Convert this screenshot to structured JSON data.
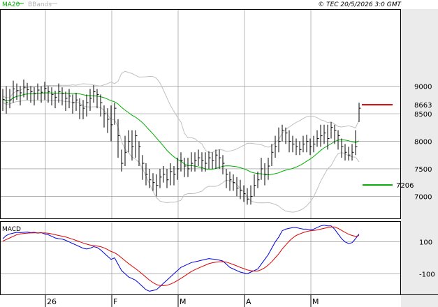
{
  "header": {
    "legend_ma": "MA20",
    "legend_bb": "BBands",
    "copyright": "© TEC 20/5/2026 3:0 GMT"
  },
  "colors": {
    "background": "#ffffff",
    "grid": "#888888",
    "panel_border": "#000000",
    "axis_band": "#ebebeb",
    "ohlc": "#000000",
    "ma20": "#00b000",
    "bbands": "#c0c0c0",
    "macd": "#0000dd",
    "signal": "#dd0000",
    "resistance": "#cc0000",
    "support": "#00a000",
    "legend_text_ma": "#00aa00",
    "legend_text_bb": "#b0b0b0"
  },
  "chart_data": [
    {
      "type": "ohlc",
      "panel": "price",
      "y_ticks": [
        "9000",
        "8500",
        "8000",
        "7500",
        "7000"
      ],
      "y_tick_values": [
        9000,
        8500,
        8000,
        7500,
        7000
      ],
      "ylim": [
        6600,
        10400
      ],
      "x_tick_labels": [
        "26",
        "F",
        "M",
        "A",
        "M"
      ],
      "x_tick_index": [
        12,
        31,
        50,
        69,
        88
      ],
      "close": [
        8760,
        8700,
        8750,
        8950,
        8920,
        8880,
        8980,
        8940,
        8900,
        8860,
        8930,
        8890,
        8960,
        8900,
        8850,
        8800,
        8900,
        8870,
        8780,
        8820,
        8700,
        8750,
        8650,
        8600,
        8700,
        8780,
        8900,
        8850,
        8700,
        8500,
        8400,
        8300,
        8600,
        8100,
        7600,
        7800,
        8000,
        7900,
        8100,
        7900,
        7600,
        7400,
        7300,
        7250,
        7200,
        7350,
        7400,
        7300,
        7450,
        7400,
        7500,
        7650,
        7550,
        7500,
        7600,
        7650,
        7700,
        7650,
        7600,
        7700,
        7650,
        7750,
        7700,
        7600,
        7400,
        7300,
        7250,
        7150,
        7100,
        7050,
        6950,
        7000,
        7200,
        7300,
        7500,
        7400,
        7550,
        7800,
        7900,
        8000,
        8200,
        8150,
        8000,
        7950,
        7900,
        7850,
        7950,
        8000,
        7900,
        7950,
        8050,
        8100,
        8150,
        8050,
        8250,
        8200,
        8100,
        7900,
        7800,
        7750,
        7800,
        7900,
        8600
      ],
      "high": [
        8950,
        9000,
        8950,
        9100,
        9050,
        9000,
        9120,
        9060,
        9000,
        8980,
        9050,
        9000,
        9080,
        9000,
        8980,
        8920,
        9050,
        8980,
        8900,
        8950,
        8850,
        8880,
        8780,
        8750,
        8850,
        8950,
        9020,
        8950,
        8850,
        8650,
        8600,
        8650,
        8700,
        8400,
        7850,
        8100,
        8200,
        8200,
        8200,
        8000,
        7750,
        7600,
        7500,
        7420,
        7400,
        7500,
        7550,
        7500,
        7600,
        7550,
        7700,
        7800,
        7700,
        7700,
        7800,
        7800,
        7850,
        7800,
        7800,
        7820,
        7800,
        7850,
        7850,
        7750,
        7500,
        7450,
        7400,
        7350,
        7300,
        7200,
        7150,
        7200,
        7400,
        7450,
        7700,
        7600,
        7700,
        7950,
        8100,
        8250,
        8300,
        8250,
        8200,
        8100,
        8050,
        8000,
        8100,
        8120,
        8050,
        8100,
        8200,
        8300,
        8300,
        8300,
        8350,
        8300,
        8200,
        8050,
        7950,
        7900,
        7950,
        8200,
        8700
      ],
      "low": [
        8550,
        8500,
        8600,
        8700,
        8750,
        8650,
        8800,
        8750,
        8700,
        8650,
        8750,
        8700,
        8750,
        8700,
        8650,
        8600,
        8700,
        8650,
        8550,
        8600,
        8500,
        8550,
        8400,
        8400,
        8450,
        8550,
        8700,
        8600,
        8450,
        8250,
        8150,
        8000,
        8300,
        7700,
        7450,
        7550,
        7800,
        7650,
        7700,
        7550,
        7300,
        7200,
        7150,
        7100,
        7000,
        7150,
        7250,
        7150,
        7200,
        7200,
        7300,
        7450,
        7350,
        7350,
        7450,
        7450,
        7550,
        7450,
        7450,
        7500,
        7500,
        7500,
        7500,
        7400,
        7150,
        7100,
        7100,
        7000,
        6950,
        6900,
        6850,
        6850,
        7000,
        7150,
        7300,
        7200,
        7300,
        7550,
        7700,
        7800,
        8000,
        7950,
        7800,
        7800,
        7750,
        7750,
        7800,
        7800,
        7750,
        7800,
        7900,
        7900,
        7950,
        7850,
        8050,
        7950,
        7850,
        7700,
        7650,
        7650,
        7650,
        7750,
        8350
      ]
    },
    {
      "type": "line",
      "panel": "macd",
      "title": "MACD",
      "y_ticks": [
        "100",
        "-100"
      ],
      "y_tick_values": [
        100,
        -100
      ],
      "ylim": [
        -230,
        230
      ],
      "series": [
        {
          "name": "",
          "values": [
            120,
            140,
            150,
            155,
            160,
            158,
            160,
            162,
            158,
            160,
            155,
            158,
            150,
            145,
            135,
            125,
            120,
            118,
            110,
            100,
            90,
            80,
            70,
            60,
            55,
            60,
            70,
            65,
            50,
            30,
            10,
            -10,
            0,
            -40,
            -80,
            -100,
            -120,
            -130,
            -140,
            -160,
            -180,
            -200,
            -210,
            -205,
            -200,
            -180,
            -160,
            -140,
            -120,
            -100,
            -80,
            -60,
            -50,
            -40,
            -30,
            -25,
            -20,
            -15,
            -10,
            -5,
            -8,
            -10,
            -15,
            -20,
            -40,
            -60,
            -70,
            -80,
            -90,
            -95,
            -100,
            -90,
            -80,
            -70,
            -40,
            -10,
            20,
            60,
            100,
            130,
            170,
            180,
            185,
            190,
            190,
            185,
            180,
            180,
            175,
            180,
            190,
            200,
            205,
            200,
            200,
            180,
            150,
            120,
            100,
            90,
            95,
            120,
            150
          ]
        },
        {
          "name": "",
          "values": [
            105,
            115,
            125,
            135,
            145,
            150,
            153,
            155,
            156,
            157,
            157,
            157,
            156,
            154,
            150,
            145,
            140,
            136,
            131,
            124,
            117,
            109,
            101,
            93,
            86,
            80,
            77,
            74,
            70,
            62,
            52,
            40,
            32,
            18,
            0,
            -18,
            -36,
            -52,
            -68,
            -85,
            -103,
            -122,
            -140,
            -156,
            -168,
            -174,
            -175,
            -172,
            -165,
            -155,
            -143,
            -129,
            -115,
            -100,
            -86,
            -75,
            -65,
            -55,
            -46,
            -37,
            -31,
            -27,
            -25,
            -24,
            -27,
            -34,
            -42,
            -51,
            -60,
            -68,
            -76,
            -81,
            -83,
            -83,
            -75,
            -62,
            -45,
            -25,
            0,
            25,
            55,
            80,
            105,
            125,
            140,
            150,
            158,
            165,
            170,
            172,
            175,
            180,
            185,
            190,
            193,
            193,
            185,
            172,
            160,
            148,
            140,
            135,
            140
          ]
        }
      ]
    }
  ],
  "levels": {
    "resistance": {
      "value": 8663,
      "label": "8663"
    },
    "support": {
      "value": 7206,
      "label": "7206"
    }
  }
}
